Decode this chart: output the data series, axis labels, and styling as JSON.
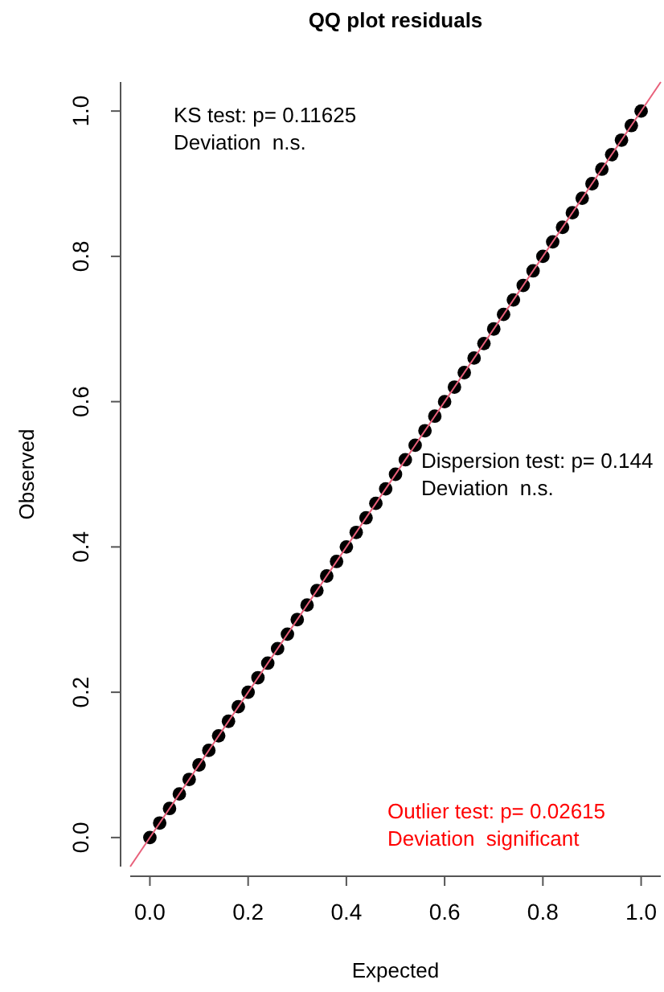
{
  "chart_data": {
    "type": "scatter",
    "title": "QQ plot residuals",
    "xlabel": "Expected",
    "ylabel": "Observed",
    "xlim": [
      -0.04,
      1.04
    ],
    "ylim": [
      -0.04,
      1.04
    ],
    "xticks": [
      {
        "value": 0,
        "label": "0.0"
      },
      0.2,
      0.4,
      0.6,
      0.8,
      {
        "value": 1,
        "label": "1.0"
      }
    ],
    "yticks": [
      {
        "value": 0,
        "label": "0.0"
      },
      0.2,
      0.4,
      0.6,
      0.8,
      {
        "value": 1,
        "label": "1.0"
      }
    ],
    "marker": "circle",
    "grid": false,
    "series": [
      {
        "color": "#000000",
        "x": [
          0,
          0.02,
          0.04,
          0.06,
          0.08,
          0.1,
          0.12,
          0.14,
          0.16,
          0.18,
          0.2,
          0.22,
          0.24,
          0.26,
          0.28,
          0.3,
          0.32,
          0.34,
          0.36,
          0.38,
          0.4,
          0.42,
          0.44,
          0.46,
          0.48,
          0.5,
          0.52,
          0.54,
          0.56,
          0.58,
          0.6,
          0.62,
          0.64,
          0.66,
          0.68,
          0.7,
          0.72,
          0.74,
          0.76,
          0.78,
          0.8,
          0.82,
          0.84,
          0.86,
          0.88,
          0.9,
          0.92,
          0.94,
          0.96,
          0.98,
          1
        ],
        "values": [
          0,
          0.02,
          0.04,
          0.06,
          0.08,
          0.1,
          0.12,
          0.14,
          0.16,
          0.18,
          0.2,
          0.22,
          0.24,
          0.26,
          0.28,
          0.3,
          0.32,
          0.34,
          0.36,
          0.38,
          0.4,
          0.42,
          0.44,
          0.46,
          0.48,
          0.5,
          0.52,
          0.54,
          0.56,
          0.58,
          0.6,
          0.62,
          0.64,
          0.66,
          0.68,
          0.7,
          0.72,
          0.74,
          0.76,
          0.78,
          0.8,
          0.82,
          0.84,
          0.86,
          0.88,
          0.9,
          0.92,
          0.94,
          0.96,
          0.98,
          1
        ]
      },
      {
        "type": "line",
        "marker": "none",
        "color": "#e8607a",
        "x": [
          -0.04,
          1.04
        ],
        "values": [
          -0.04,
          1.04
        ]
      }
    ],
    "annotations": [
      "KS test: p= 0.11625\nDeviation  n.s.",
      "Dispersion test: p= 0.144\nDeviation  n.s.",
      "Outlier test: p= 0.02615\nDeviation  significant"
    ]
  }
}
